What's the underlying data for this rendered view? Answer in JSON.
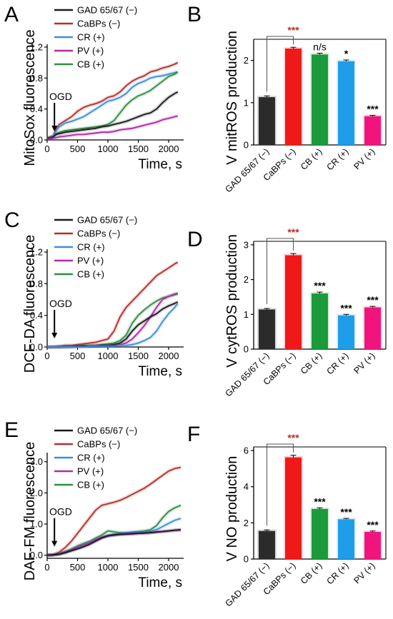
{
  "colors": {
    "GAD": "#1a1a1a",
    "CaBPs": "#b5302a",
    "CR": "#3c8ee0",
    "PV": "#b02aa8",
    "CB": "#2f8f40",
    "bar_GAD": "#2b2b2b",
    "bar_CaBPs": "#f01818",
    "bar_CB": "#1a9a3a",
    "bar_CR": "#1e9de8",
    "bar_PV": "#f0147c",
    "sig_red": "#b5302a"
  },
  "chart_data": [
    {
      "id": "A",
      "type": "line",
      "panel_label": "A",
      "ylabel": "MitoSox fluorescence",
      "xlabel": "Time, s",
      "xlim": [
        0,
        2200
      ],
      "ylim": [
        0,
        1.2
      ],
      "xticks": [
        "0",
        "500",
        "1000",
        "1500",
        "2000"
      ],
      "yticks": [
        "0.0",
        "0.4",
        "0.8",
        "1.2"
      ],
      "ytick_values": [
        0,
        0.4,
        0.8,
        1.2
      ],
      "annotation": "OGD",
      "annotation_x": 120,
      "legend": [
        "GAD 65/67 (−)",
        "CaBPs (−)",
        "CR (+)",
        "PV (+)",
        "CB (+)"
      ],
      "series": [
        {
          "name": "CaBPs (−)",
          "key": "CaBPs",
          "x": [
            0,
            100,
            150,
            200,
            300,
            400,
            500,
            600,
            700,
            800,
            900,
            1000,
            1100,
            1200,
            1300,
            1400,
            1500,
            1600,
            1700,
            1800,
            1900,
            2000,
            2100,
            2150
          ],
          "y": [
            0.02,
            0.05,
            0.15,
            0.2,
            0.25,
            0.3,
            0.37,
            0.42,
            0.45,
            0.47,
            0.5,
            0.55,
            0.57,
            0.62,
            0.7,
            0.76,
            0.8,
            0.83,
            0.88,
            0.9,
            0.93,
            0.95,
            0.98,
            1.0
          ]
        },
        {
          "name": "CR (+)",
          "key": "CR",
          "x": [
            0,
            100,
            150,
            200,
            300,
            400,
            500,
            600,
            700,
            800,
            900,
            1000,
            1100,
            1200,
            1300,
            1400,
            1500,
            1600,
            1700,
            1800,
            1900,
            2000,
            2100,
            2150
          ],
          "y": [
            0.02,
            0.05,
            0.12,
            0.17,
            0.22,
            0.24,
            0.27,
            0.3,
            0.35,
            0.4,
            0.45,
            0.5,
            0.52,
            0.55,
            0.6,
            0.68,
            0.73,
            0.76,
            0.8,
            0.82,
            0.83,
            0.85,
            0.87,
            0.88
          ]
        },
        {
          "name": "CB (+)",
          "key": "CB",
          "x": [
            0,
            100,
            150,
            200,
            300,
            400,
            500,
            600,
            700,
            800,
            900,
            1000,
            1100,
            1200,
            1300,
            1400,
            1500,
            1600,
            1700,
            1800,
            1900,
            2000,
            2100,
            2150
          ],
          "y": [
            0.02,
            0.04,
            0.08,
            0.1,
            0.12,
            0.13,
            0.14,
            0.15,
            0.16,
            0.17,
            0.18,
            0.2,
            0.25,
            0.35,
            0.45,
            0.52,
            0.57,
            0.6,
            0.64,
            0.7,
            0.76,
            0.82,
            0.85,
            0.88
          ]
        },
        {
          "name": "GAD 65/67 (−)",
          "key": "GAD",
          "x": [
            0,
            100,
            150,
            200,
            300,
            400,
            500,
            600,
            700,
            800,
            900,
            1000,
            1100,
            1200,
            1300,
            1400,
            1500,
            1600,
            1700,
            1800,
            1900,
            2000,
            2100,
            2150
          ],
          "y": [
            0.02,
            0.04,
            0.07,
            0.08,
            0.1,
            0.11,
            0.12,
            0.13,
            0.14,
            0.15,
            0.17,
            0.18,
            0.2,
            0.22,
            0.24,
            0.27,
            0.3,
            0.33,
            0.35,
            0.4,
            0.48,
            0.55,
            0.6,
            0.62
          ]
        },
        {
          "name": "PV (+)",
          "key": "PV",
          "x": [
            0,
            100,
            150,
            200,
            300,
            400,
            500,
            600,
            700,
            800,
            900,
            1000,
            1100,
            1200,
            1300,
            1400,
            1500,
            1600,
            1700,
            1800,
            1900,
            2000,
            2100,
            2150
          ],
          "y": [
            0.01,
            0.02,
            0.03,
            0.04,
            0.05,
            0.06,
            0.07,
            0.07,
            0.08,
            0.09,
            0.1,
            0.1,
            0.11,
            0.13,
            0.14,
            0.15,
            0.17,
            0.19,
            0.21,
            0.23,
            0.26,
            0.28,
            0.3,
            0.31
          ]
        }
      ]
    },
    {
      "id": "B",
      "type": "bar",
      "panel_label": "B",
      "ylabel": "V mitROS production",
      "ylim": [
        0,
        2.5
      ],
      "yticks": [
        "0",
        "1",
        "2"
      ],
      "ytick_values": [
        0,
        1,
        2
      ],
      "categories": [
        "GAD 65/67 (−)",
        "CaBPs (−)",
        "CB (+)",
        "CR (+)",
        "PV (+)"
      ],
      "keys": [
        "GAD",
        "CaBPs",
        "CB",
        "CR",
        "PV"
      ],
      "values": [
        1.13,
        2.28,
        2.14,
        1.98,
        0.68
      ],
      "errors": [
        0.03,
        0.03,
        0.03,
        0.03,
        0.02
      ],
      "significance": [
        "",
        "***",
        "n/s",
        "*",
        "***"
      ],
      "bracket": [
        0,
        1
      ]
    },
    {
      "id": "C",
      "type": "line",
      "panel_label": "C",
      "ylabel": "DCF-DA fluorescence",
      "xlabel": "Time, s",
      "xlim": [
        0,
        2200
      ],
      "ylim": [
        0,
        1.2
      ],
      "xticks": [
        "0",
        "500",
        "1000",
        "1500",
        "2000"
      ],
      "yticks": [
        "0.0",
        "0.4",
        "0.8",
        "1.2"
      ],
      "ytick_values": [
        0,
        0.4,
        0.8,
        1.2
      ],
      "annotation": "OGD",
      "annotation_x": 120,
      "legend": [
        "GAD 65/67 (−)",
        "CaBPs (−)",
        "CR (+)",
        "PV (+)",
        "CB (+)"
      ],
      "series": [
        {
          "name": "CaBPs (−)",
          "key": "CaBPs",
          "x": [
            0,
            100,
            200,
            300,
            400,
            500,
            600,
            700,
            800,
            900,
            1000,
            1100,
            1200,
            1300,
            1400,
            1500,
            1600,
            1700,
            1800,
            1900,
            2000,
            2100,
            2150
          ],
          "y": [
            0.0,
            0.0,
            0.01,
            0.02,
            0.02,
            0.03,
            0.04,
            0.05,
            0.06,
            0.08,
            0.1,
            0.2,
            0.38,
            0.5,
            0.58,
            0.66,
            0.74,
            0.82,
            0.9,
            0.95,
            1.0,
            1.05,
            1.07
          ]
        },
        {
          "name": "CB (+)",
          "key": "CB",
          "x": [
            0,
            100,
            200,
            300,
            400,
            500,
            600,
            700,
            800,
            900,
            1000,
            1100,
            1200,
            1300,
            1400,
            1500,
            1600,
            1700,
            1800,
            1900,
            2000,
            2100,
            2150
          ],
          "y": [
            0.0,
            0.0,
            0.0,
            0.01,
            0.01,
            0.01,
            0.02,
            0.02,
            0.02,
            0.03,
            0.04,
            0.05,
            0.08,
            0.15,
            0.3,
            0.4,
            0.47,
            0.53,
            0.58,
            0.62,
            0.64,
            0.66,
            0.67
          ]
        },
        {
          "name": "PV (+)",
          "key": "PV",
          "x": [
            0,
            100,
            200,
            300,
            400,
            500,
            600,
            700,
            800,
            900,
            1000,
            1100,
            1200,
            1300,
            1400,
            1500,
            1600,
            1700,
            1800,
            1900,
            2000,
            2100,
            2150
          ],
          "y": [
            0.0,
            0.0,
            0.0,
            0.0,
            0.01,
            0.01,
            0.01,
            0.01,
            0.02,
            0.02,
            0.02,
            0.02,
            0.03,
            0.05,
            0.1,
            0.18,
            0.27,
            0.38,
            0.5,
            0.6,
            0.64,
            0.67,
            0.68
          ]
        },
        {
          "name": "GAD 65/67 (−)",
          "key": "GAD",
          "x": [
            0,
            100,
            200,
            300,
            400,
            500,
            600,
            700,
            800,
            900,
            1000,
            1100,
            1200,
            1300,
            1400,
            1500,
            1600,
            1700,
            1800,
            1900,
            2000,
            2100,
            2150
          ],
          "y": [
            0.0,
            0.0,
            0.0,
            0.0,
            0.0,
            0.01,
            0.01,
            0.01,
            0.01,
            0.02,
            0.02,
            0.03,
            0.05,
            0.1,
            0.2,
            0.28,
            0.33,
            0.38,
            0.42,
            0.48,
            0.52,
            0.55,
            0.57
          ]
        },
        {
          "name": "CR (+)",
          "key": "CR",
          "x": [
            0,
            100,
            200,
            300,
            400,
            500,
            600,
            700,
            800,
            900,
            1000,
            1100,
            1200,
            1300,
            1400,
            1500,
            1600,
            1700,
            1800,
            1900,
            2000,
            2100,
            2150
          ],
          "y": [
            0.0,
            0.0,
            0.0,
            0.0,
            0.0,
            0.0,
            0.0,
            0.01,
            0.01,
            0.01,
            0.01,
            0.01,
            0.02,
            0.02,
            0.03,
            0.05,
            0.08,
            0.12,
            0.2,
            0.32,
            0.42,
            0.5,
            0.55
          ]
        }
      ]
    },
    {
      "id": "D",
      "type": "bar",
      "panel_label": "D",
      "ylabel": "V cytROS production",
      "ylim": [
        0,
        3.1
      ],
      "yticks": [
        "0",
        "1",
        "2",
        "3"
      ],
      "ytick_values": [
        0,
        1,
        2,
        3
      ],
      "categories": [
        "GAD 65/67 (−)",
        "CaBPs (−)",
        "CB (+)",
        "CR (+)",
        "PV (+)"
      ],
      "keys": [
        "GAD",
        "CaBPs",
        "CB",
        "CR",
        "PV"
      ],
      "values": [
        1.14,
        2.7,
        1.6,
        0.97,
        1.2
      ],
      "errors": [
        0.03,
        0.05,
        0.04,
        0.03,
        0.03
      ],
      "significance": [
        "",
        "***",
        "***",
        "***",
        "***"
      ],
      "bracket": [
        0,
        1
      ]
    },
    {
      "id": "E",
      "type": "line",
      "panel_label": "E",
      "ylabel": "DAF-FM fluorescence",
      "xlabel": "Time, s",
      "xlim": [
        0,
        2200
      ],
      "ylim": [
        -0.1,
        3.2
      ],
      "xticks": [
        "0",
        "500",
        "1000",
        "1500",
        "2000"
      ],
      "yticks": [
        "0.0",
        "1.0",
        "2.0",
        "3.0"
      ],
      "ytick_values": [
        0,
        1,
        2,
        3
      ],
      "annotation": "OGD",
      "annotation_x": 120,
      "legend": [
        "GAD 65/67 (−)",
        "CaBPs (−)",
        "CR (+)",
        "PV (+)",
        "CB (+)"
      ],
      "series": [
        {
          "name": "CaBPs (−)",
          "key": "CaBPs",
          "x": [
            0,
            100,
            200,
            300,
            400,
            500,
            600,
            700,
            800,
            900,
            1000,
            1100,
            1200,
            1300,
            1400,
            1500,
            1600,
            1700,
            1800,
            1900,
            2000,
            2100,
            2200
          ],
          "y": [
            0.0,
            0.02,
            0.1,
            0.25,
            0.45,
            0.7,
            0.95,
            1.2,
            1.45,
            1.6,
            1.65,
            1.7,
            1.76,
            1.85,
            1.95,
            2.05,
            2.15,
            2.28,
            2.42,
            2.56,
            2.7,
            2.78,
            2.82
          ]
        },
        {
          "name": "CB (+)",
          "key": "CB",
          "x": [
            0,
            100,
            200,
            300,
            400,
            500,
            600,
            700,
            800,
            900,
            1000,
            1100,
            1200,
            1300,
            1400,
            1500,
            1600,
            1700,
            1800,
            1900,
            2000,
            2100,
            2200
          ],
          "y": [
            0.0,
            0.01,
            0.05,
            0.12,
            0.2,
            0.3,
            0.38,
            0.45,
            0.55,
            0.65,
            0.78,
            0.75,
            0.72,
            0.72,
            0.74,
            0.76,
            0.78,
            0.82,
            0.95,
            1.2,
            1.4,
            1.52,
            1.6
          ]
        },
        {
          "name": "CR (+)",
          "key": "CR",
          "x": [
            0,
            100,
            200,
            300,
            400,
            500,
            600,
            700,
            800,
            900,
            1000,
            1100,
            1200,
            1300,
            1400,
            1500,
            1600,
            1700,
            1800,
            1900,
            2000,
            2100,
            2200
          ],
          "y": [
            0.0,
            0.01,
            0.04,
            0.1,
            0.18,
            0.26,
            0.33,
            0.4,
            0.48,
            0.58,
            0.64,
            0.68,
            0.7,
            0.72,
            0.73,
            0.74,
            0.75,
            0.77,
            0.82,
            0.92,
            1.02,
            1.12,
            1.18
          ]
        },
        {
          "name": "PV (+)",
          "key": "PV",
          "x": [
            0,
            100,
            200,
            300,
            400,
            500,
            600,
            700,
            800,
            900,
            1000,
            1100,
            1200,
            1300,
            1400,
            1500,
            1600,
            1700,
            1800,
            1900,
            2000,
            2100,
            2200
          ],
          "y": [
            0.0,
            0.01,
            0.04,
            0.1,
            0.17,
            0.25,
            0.32,
            0.4,
            0.5,
            0.58,
            0.62,
            0.64,
            0.66,
            0.67,
            0.68,
            0.7,
            0.71,
            0.73,
            0.75,
            0.76,
            0.78,
            0.8,
            0.81
          ]
        },
        {
          "name": "GAD 65/67 (−)",
          "key": "GAD",
          "x": [
            0,
            100,
            200,
            300,
            400,
            500,
            600,
            700,
            800,
            900,
            1000,
            1100,
            1200,
            1300,
            1400,
            1500,
            1600,
            1700,
            1800,
            1900,
            2000,
            2100,
            2200
          ],
          "y": [
            0.0,
            0.01,
            0.03,
            0.08,
            0.14,
            0.2,
            0.27,
            0.35,
            0.45,
            0.55,
            0.62,
            0.65,
            0.67,
            0.68,
            0.69,
            0.7,
            0.71,
            0.72,
            0.74,
            0.76,
            0.78,
            0.8,
            0.82
          ]
        }
      ]
    },
    {
      "id": "F",
      "type": "bar",
      "panel_label": "F",
      "ylabel": "V NO production",
      "ylim": [
        0,
        6.2
      ],
      "yticks": [
        "0",
        "2",
        "4",
        "6"
      ],
      "ytick_values": [
        0,
        2,
        4,
        6
      ],
      "categories": [
        "GAD 65/67 (−)",
        "CaBPs (−)",
        "CB (+)",
        "CR (+)",
        "PV (+)"
      ],
      "keys": [
        "GAD",
        "CaBPs",
        "CB",
        "CR",
        "PV"
      ],
      "values": [
        1.55,
        5.62,
        2.77,
        2.2,
        1.5
      ],
      "errors": [
        0.06,
        0.12,
        0.06,
        0.05,
        0.05
      ],
      "significance": [
        "",
        "***",
        "***",
        "***",
        "***"
      ],
      "bracket": [
        0,
        1
      ]
    }
  ]
}
